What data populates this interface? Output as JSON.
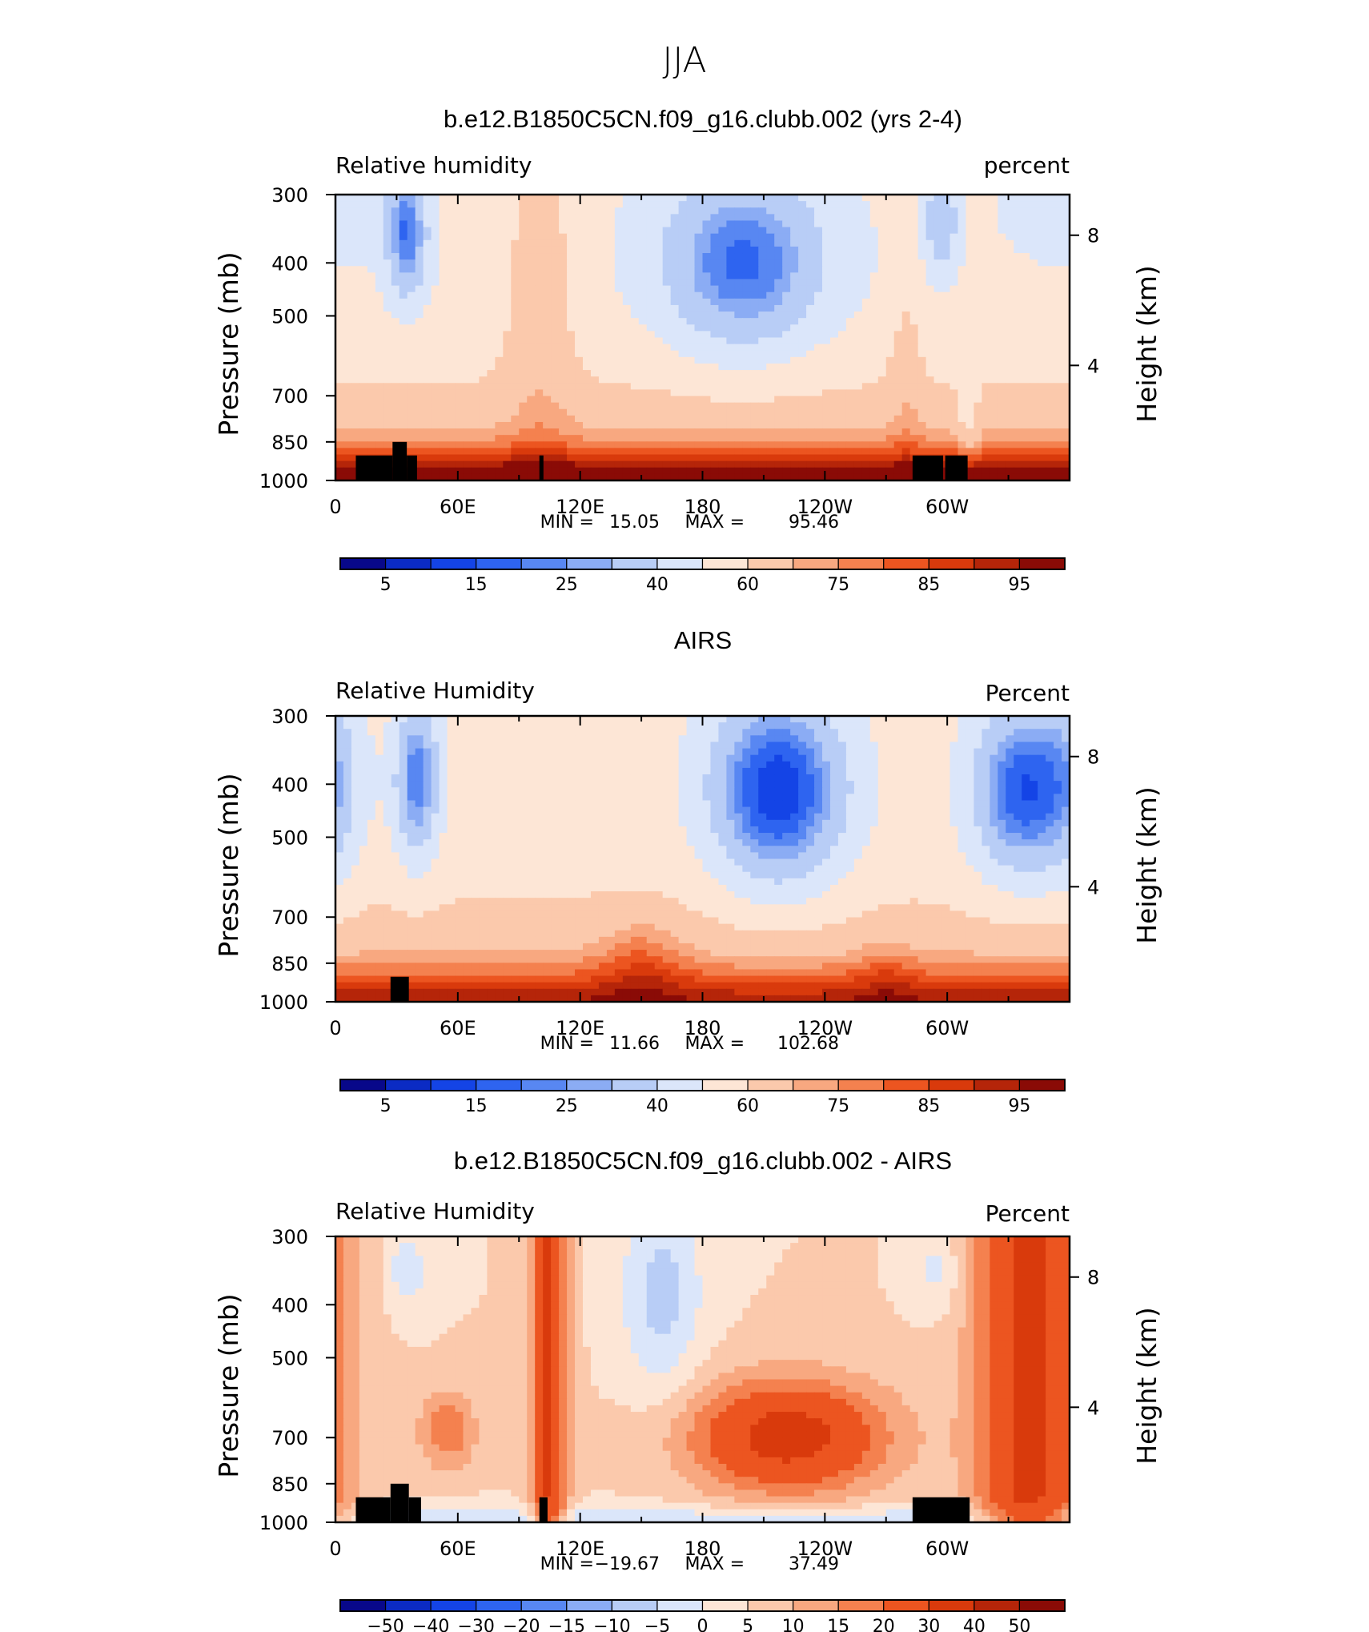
{
  "figure": {
    "title": "JJA"
  },
  "chart_data": [
    {
      "type": "heatmap",
      "title": "b.e12.B1850C5CN.f09_g16.clubb.002 (yrs 2-4)",
      "subtitle_left": "Relative humidity",
      "subtitle_right": "percent",
      "ylabel": "Pressure (mb)",
      "ylabel_right": "Height (km)",
      "y_ticks": [
        "300",
        "400",
        "500",
        "700",
        "850",
        "1000"
      ],
      "y_right_ticks": [
        "8",
        "4"
      ],
      "x_ticks": [
        "0",
        "60E",
        "120E",
        "180",
        "120W",
        "60W"
      ],
      "xlim": [
        0,
        360
      ],
      "ylim": [
        1000,
        300
      ],
      "y_scale": "log",
      "min_label": "MIN =",
      "min_value": "15.05",
      "max_label": "MAX =",
      "max_value": "95.46",
      "colorbar_ticks": [
        "5",
        "15",
        "25",
        "40",
        "60",
        "75",
        "85",
        "95"
      ],
      "levels": [
        5,
        10,
        15,
        20,
        25,
        30,
        40,
        50,
        60,
        70,
        75,
        80,
        85,
        90,
        95
      ],
      "field": "model",
      "topography": [
        {
          "lon": [
            10,
            28
          ],
          "pressure": 900
        },
        {
          "lon": [
            28,
            35
          ],
          "pressure": 850
        },
        {
          "lon": [
            35,
            40
          ],
          "pressure": 900
        },
        {
          "lon": [
            100,
            102
          ],
          "pressure": 900
        },
        {
          "lon": [
            283,
            298
          ],
          "pressure": 900
        },
        {
          "lon": [
            299,
            310
          ],
          "pressure": 900
        }
      ]
    },
    {
      "type": "heatmap",
      "title": "AIRS",
      "subtitle_left": "Relative Humidity",
      "subtitle_right": "Percent",
      "ylabel": "Pressure (mb)",
      "ylabel_right": "Height (km)",
      "y_ticks": [
        "300",
        "400",
        "500",
        "700",
        "850",
        "1000"
      ],
      "y_right_ticks": [
        "8",
        "4"
      ],
      "x_ticks": [
        "0",
        "60E",
        "120E",
        "180",
        "120W",
        "60W"
      ],
      "xlim": [
        0,
        360
      ],
      "ylim": [
        1000,
        300
      ],
      "y_scale": "log",
      "min_label": "MIN =",
      "min_value": "11.66",
      "max_label": "MAX =",
      "max_value": "102.68",
      "colorbar_ticks": [
        "5",
        "15",
        "25",
        "40",
        "60",
        "75",
        "85",
        "95"
      ],
      "levels": [
        5,
        10,
        15,
        20,
        25,
        30,
        40,
        50,
        60,
        70,
        75,
        80,
        85,
        90,
        95
      ],
      "field": "airs",
      "topography": [
        {
          "lon": [
            27,
            36
          ],
          "pressure": 900
        }
      ]
    },
    {
      "type": "heatmap",
      "title": "b.e12.B1850C5CN.f09_g16.clubb.002 - AIRS",
      "subtitle_left": "Relative Humidity",
      "subtitle_right": "Percent",
      "ylabel": "Pressure (mb)",
      "ylabel_right": "Height (km)",
      "y_ticks": [
        "300",
        "400",
        "500",
        "700",
        "850",
        "1000"
      ],
      "y_right_ticks": [
        "8",
        "4"
      ],
      "x_ticks": [
        "0",
        "60E",
        "120E",
        "180",
        "120W",
        "60W"
      ],
      "xlim": [
        0,
        360
      ],
      "ylim": [
        1000,
        300
      ],
      "y_scale": "log",
      "min_label": "MIN =",
      "min_value": "−19.67",
      "max_label": "MAX =",
      "max_value": "37.49",
      "colorbar_ticks": [
        "−50",
        "−40",
        "−30",
        "−20",
        "−15",
        "−10",
        "−5",
        "0",
        "5",
        "10",
        "15",
        "20",
        "30",
        "40",
        "50"
      ],
      "levels": [
        -50,
        -40,
        -30,
        -20,
        -15,
        -10,
        -5,
        0,
        5,
        10,
        15,
        20,
        30,
        40,
        50
      ],
      "field": "diff",
      "topography": [
        {
          "lon": [
            10,
            27
          ],
          "pressure": 900
        },
        {
          "lon": [
            27,
            36
          ],
          "pressure": 850
        },
        {
          "lon": [
            36,
            42
          ],
          "pressure": 900
        },
        {
          "lon": [
            100,
            104
          ],
          "pressure": 900
        },
        {
          "lon": [
            283,
            311
          ],
          "pressure": 900
        }
      ]
    }
  ],
  "colors": {
    "palette": [
      "#08088a",
      "#0b2bc4",
      "#1444e6",
      "#2e64f0",
      "#5887f2",
      "#8bacf4",
      "#b8cdf6",
      "#dbe6fa",
      "#fde6d6",
      "#fbc9ac",
      "#f8a880",
      "#f4814f",
      "#ec5520",
      "#d93a0c",
      "#b52509",
      "#8a0b06"
    ],
    "topography": "#000000"
  }
}
